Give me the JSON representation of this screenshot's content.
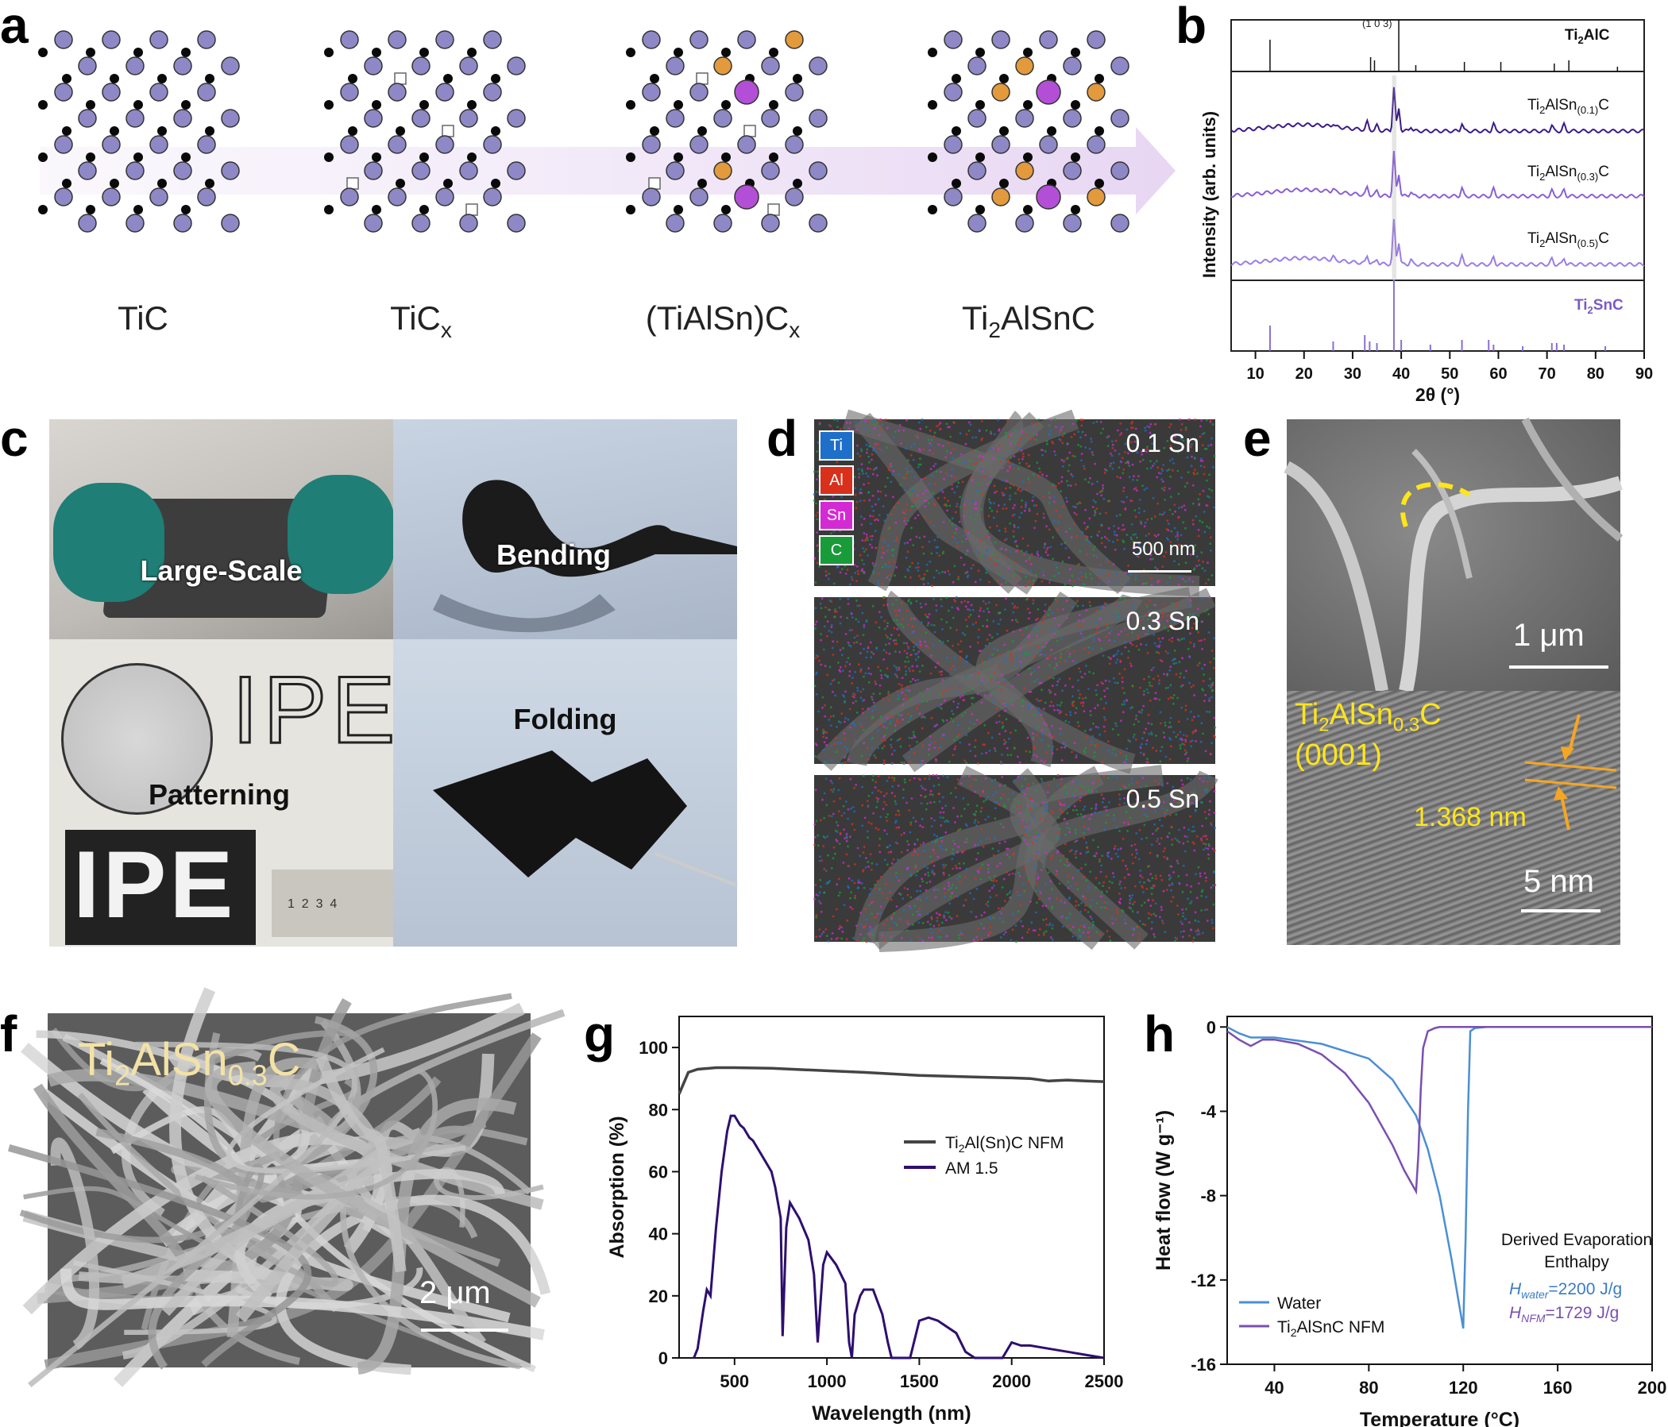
{
  "panels": {
    "a": {
      "label": "a",
      "structures": [
        "TiC",
        "TiC",
        "(TiAlSn)C",
        "Ti",
        "AlSnC"
      ],
      "sub_x": "x",
      "sub_2": "2"
    },
    "b": {
      "label": "b",
      "peak_label": "(1 0 3)",
      "ref_top": "Ti",
      "ref_top_sub": "2",
      "ref_top_rest": "AlC",
      "ref_bottom": "Ti",
      "ref_bottom_sub": "2",
      "ref_bottom_rest": "SnC",
      "samples": [
        {
          "pre": "Ti",
          "s1": "2",
          "mid": "AlSn",
          "s2": "(0.1)",
          "post": "C",
          "color": "#3b1a8a"
        },
        {
          "pre": "Ti",
          "s1": "2",
          "mid": "AlSn",
          "s2": "(0.3)",
          "post": "C",
          "color": "#8a5ed6"
        },
        {
          "pre": "Ti",
          "s1": "2",
          "mid": "AlSn",
          "s2": "(0.5)",
          "post": "C",
          "color": "#9b7ce6"
        }
      ],
      "xlabel": "2θ (°)",
      "ylabel": "Intensity (arb. units)",
      "xticks": [
        "10",
        "20",
        "30",
        "40",
        "50",
        "60",
        "70",
        "80",
        "90"
      ]
    },
    "c": {
      "label": "c",
      "photos": [
        "Large-Scale",
        "Bending",
        "Patterning",
        "Folding"
      ],
      "ipe_text": "IPE",
      "ruler_numbers": "1  2  3  4"
    },
    "d": {
      "label": "d",
      "legend": [
        {
          "name": "Ti",
          "color": "#1e6fc9"
        },
        {
          "name": "Al",
          "color": "#d9301c"
        },
        {
          "name": "Sn",
          "color": "#d42ad4"
        },
        {
          "name": "C",
          "color": "#1a9b3a"
        }
      ],
      "maps": [
        "0.1 Sn",
        "0.3 Sn",
        "0.5 Sn"
      ],
      "scalebar": "500 nm"
    },
    "e": {
      "label": "e",
      "sem_scalebar": "1 μm",
      "tem_pre": "Ti",
      "tem_s1": "2",
      "tem_mid": "AlSn",
      "tem_s2": "0.3",
      "tem_post": "C",
      "tem_plane": "(0001)",
      "spacing": "1.368 nm",
      "tem_scalebar": "5 nm"
    },
    "f": {
      "label": "f",
      "pre": "Ti",
      "s1": "2",
      "mid": "AlSn",
      "s2": "0.3",
      "post": "C",
      "scalebar": "2 μm"
    },
    "g": {
      "label": "g"
    },
    "h": {
      "label": "h"
    }
  },
  "chart_data": [
    {
      "panel": "g",
      "type": "line",
      "xlabel": "Wavelength (nm)",
      "ylabel": "Absorption (%)",
      "xlim": [
        200,
        2500
      ],
      "ylim": [
        0,
        110
      ],
      "xticks": [
        500,
        1000,
        1500,
        2000,
        2500
      ],
      "yticks": [
        0,
        20,
        40,
        60,
        80,
        100
      ],
      "series": [
        {
          "name": "Ti2Al(Sn)C NFM",
          "legend_pre": "Ti",
          "legend_sub": "2",
          "legend_post": "Al(Sn)C NFM",
          "color": "#444444",
          "x": [
            200,
            250,
            300,
            400,
            500,
            700,
            1000,
            1200,
            1500,
            1800,
            2000,
            2100,
            2200,
            2300,
            2400,
            2500
          ],
          "y": [
            85,
            92,
            93,
            93.5,
            93.5,
            93.3,
            92.5,
            92,
            91,
            90.5,
            90.2,
            90,
            89.2,
            89.5,
            89.2,
            89
          ]
        },
        {
          "name": "AM 1.5",
          "color": "#2e0f6e",
          "x": [
            280,
            300,
            330,
            350,
            370,
            400,
            430,
            460,
            480,
            500,
            530,
            550,
            580,
            600,
            650,
            700,
            720,
            750,
            760,
            780,
            800,
            850,
            900,
            930,
            950,
            980,
            1000,
            1050,
            1100,
            1120,
            1135,
            1150,
            1180,
            1200,
            1250,
            1300,
            1330,
            1350,
            1400,
            1450,
            1500,
            1550,
            1600,
            1700,
            1750,
            1800,
            1850,
            1900,
            1950,
            2000,
            2050,
            2100,
            2200,
            2300,
            2400,
            2500
          ],
          "y": [
            0,
            3,
            15,
            22,
            20,
            42,
            60,
            73,
            78,
            78,
            75,
            74,
            71,
            70,
            65,
            60,
            55,
            45,
            7,
            42,
            50,
            45,
            38,
            27,
            5,
            30,
            34,
            30,
            24,
            5,
            0,
            14,
            20,
            22,
            22,
            14,
            5,
            0,
            0,
            0,
            12,
            13,
            12,
            8,
            2,
            0,
            0,
            0,
            0,
            5,
            4,
            4,
            3,
            2,
            1,
            0
          ]
        }
      ]
    },
    {
      "panel": "h",
      "type": "line",
      "xlabel": "Temperature (°C)",
      "ylabel": "Heat flow (W g⁻¹)",
      "xlim": [
        20,
        200
      ],
      "ylim": [
        -16,
        0.5
      ],
      "xticks": [
        40,
        80,
        120,
        160,
        200
      ],
      "yticks": [
        0,
        -4,
        -8,
        -12,
        -16
      ],
      "series": [
        {
          "name": "Water",
          "color": "#4a8fd4",
          "x": [
            20,
            25,
            30,
            40,
            60,
            80,
            90,
            100,
            105,
            110,
            115,
            118,
            120,
            121,
            122,
            123,
            125,
            130,
            140,
            150,
            160,
            200
          ],
          "y": [
            0,
            -0.3,
            -0.5,
            -0.5,
            -0.8,
            -1.5,
            -2.5,
            -4.2,
            -5.8,
            -8,
            -11,
            -13,
            -14.3,
            -10,
            -4,
            -0.2,
            -0.05,
            0,
            0,
            0,
            0,
            0
          ]
        },
        {
          "name": "Ti2AlSnC NFM",
          "legend_pre": "Ti",
          "legend_sub": "2",
          "legend_post": "AlSnC NFM",
          "color": "#7a4fb0",
          "x": [
            20,
            25,
            30,
            35,
            40,
            50,
            60,
            70,
            80,
            90,
            95,
            100,
            101,
            102,
            103,
            105,
            108,
            110,
            120,
            140,
            160,
            200
          ],
          "y": [
            -0.2,
            -0.6,
            -0.9,
            -0.6,
            -0.6,
            -0.8,
            -1.3,
            -2.2,
            -3.6,
            -5.6,
            -6.8,
            -7.8,
            -6,
            -3,
            -1,
            -0.2,
            -0.05,
            0,
            0,
            0,
            0,
            0
          ]
        }
      ],
      "annotation_title": "Derived Evaporation Enthalpy",
      "annotations": [
        {
          "sym": "H",
          "sub": "water",
          "value": "=2200 J/g",
          "color": "#3a7cc4"
        },
        {
          "sym": "H",
          "sub": "NFM",
          "value": "=1729 J/g",
          "color": "#7a4fb0"
        }
      ]
    }
  ]
}
